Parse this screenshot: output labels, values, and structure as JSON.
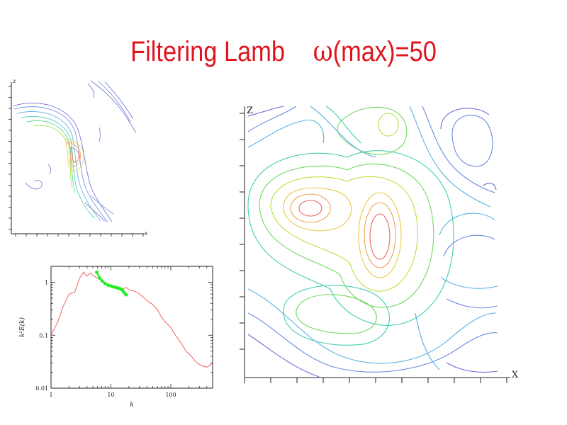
{
  "slide": {
    "title_main": "Filtering Lamb",
    "title_omega": "ω",
    "title_rest": "(max)=50"
  },
  "swirl_plot": {
    "type": "contour",
    "xlabel": "x",
    "ylabel": "z"
  },
  "spectrum_chart": {
    "chart_data": {
      "type": "line",
      "scale": "log-log",
      "xlabel": "k",
      "ylabel": "k²E(k)",
      "x_ticks": [
        "1",
        "10",
        "100"
      ],
      "y_ticks": [
        "0.01",
        "0.1",
        "1"
      ],
      "xlim": [
        1,
        500
      ],
      "ylim": [
        0.01,
        2
      ],
      "series": [
        {
          "color": "#f06060",
          "x": [
            1.0,
            1.3,
            1.6,
            2.0,
            2.5,
            3.0,
            3.5,
            4.0,
            4.5,
            5.0,
            6.0,
            7.0,
            8.0,
            9.0,
            10.0,
            12.0,
            14.0,
            16.0,
            18.0,
            20.0,
            22.0,
            25.0,
            30.0,
            35.0,
            40.0,
            50.0,
            60.0,
            70.0,
            80.0,
            100.0,
            120.0,
            150.0,
            180.0,
            220.0,
            260.0,
            300.0,
            350.0,
            400.0,
            450.0,
            500.0
          ],
          "y": [
            0.1,
            0.18,
            0.35,
            0.6,
            0.65,
            1.2,
            1.55,
            1.3,
            1.5,
            1.35,
            1.2,
            1.05,
            0.95,
            0.9,
            0.85,
            0.82,
            0.78,
            0.75,
            0.8,
            0.72,
            0.7,
            0.68,
            0.6,
            0.52,
            0.45,
            0.38,
            0.3,
            0.22,
            0.18,
            0.14,
            0.1,
            0.07,
            0.05,
            0.04,
            0.032,
            0.028,
            0.026,
            0.025,
            0.027,
            0.03
          ]
        },
        {
          "color": "#22ee22",
          "x": [
            5.8,
            6.5,
            7.2,
            8.0,
            9.0,
            10.0,
            11.0,
            12.0,
            13.0,
            14.0,
            15.0,
            16.0,
            17.0,
            18.0
          ],
          "y": [
            1.55,
            1.2,
            1.05,
            0.95,
            0.88,
            0.85,
            0.82,
            0.8,
            0.78,
            0.76,
            0.73,
            0.68,
            0.62,
            0.58
          ]
        }
      ]
    }
  },
  "contour_plot": {
    "type": "contour",
    "xlabel": "X",
    "ylabel": "Z"
  }
}
